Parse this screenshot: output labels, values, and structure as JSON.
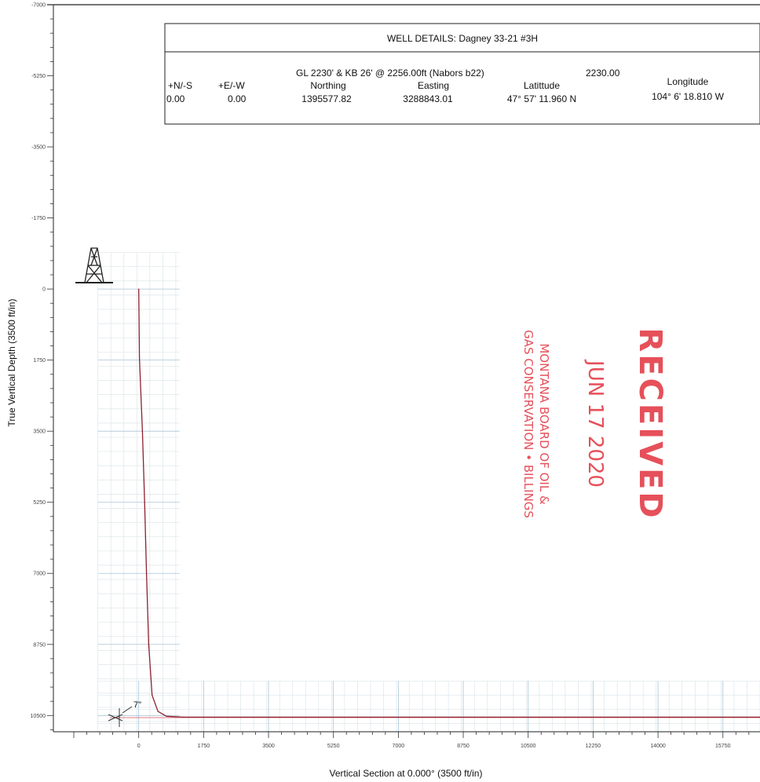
{
  "chart_data": {
    "type": "line",
    "title": "",
    "xlabel": "Vertical Section at 0.000° (3500 ft/in)",
    "ylabel": "True Vertical Depth (3500 ft/in)",
    "x_ticks": [
      "0",
      "1750",
      "3500",
      "5250",
      "7000",
      "8750",
      "10500",
      "12250",
      "14000",
      "15750"
    ],
    "y_ticks": [
      "-7000",
      "-5250",
      "-3500",
      "-1750",
      "0",
      "1750",
      "3500",
      "5250",
      "7000",
      "8750",
      "10500"
    ],
    "xlim": [
      -2300,
      16750
    ],
    "ylim": [
      -7000,
      10900
    ],
    "grid": true,
    "series": [
      {
        "color": "#8b2230",
        "x": [
          0,
          20,
          100,
          160,
          210,
          270,
          360,
          520,
          750,
          1200,
          16750
        ],
        "y": [
          0,
          1700,
          3500,
          5250,
          7000,
          8750,
          10000,
          10400,
          10520,
          10540,
          10540
        ]
      }
    ],
    "annotations": [
      "7\""
    ]
  },
  "well_details": {
    "title": "WELL DETAILS:  Dagney 33-21 #3H",
    "elevation": "GL 2230' & KB 26' @ 2256.00ft (Nabors b22)",
    "ground_level": "2230.00",
    "headers": {
      "ns": "+N/-S",
      "ew": "+E/-W",
      "northing": "Northing",
      "easting": "Easting",
      "latitude": "Latittude",
      "longitude": "Longitude"
    },
    "values": {
      "ns": "0.00",
      "ew": "0.00",
      "northing": "1395577.82",
      "easting": "3288843.01",
      "latitude": "47° 57' 11.960 N",
      "longitude": "104° 6' 18.810 W"
    }
  },
  "stamp": {
    "word": "RECEIVED",
    "date": "JUN 17 2020",
    "line1": "MONTANA BOARD OF OIL &",
    "line2": "GAS CONSERVATION • BILLINGS",
    "color": "#e6505a"
  },
  "colors": {
    "grid_minor": "#dde6ea",
    "grid_major": "#a8c4d6",
    "trajectory": "#8b2230",
    "section_line": "#e07a80"
  }
}
